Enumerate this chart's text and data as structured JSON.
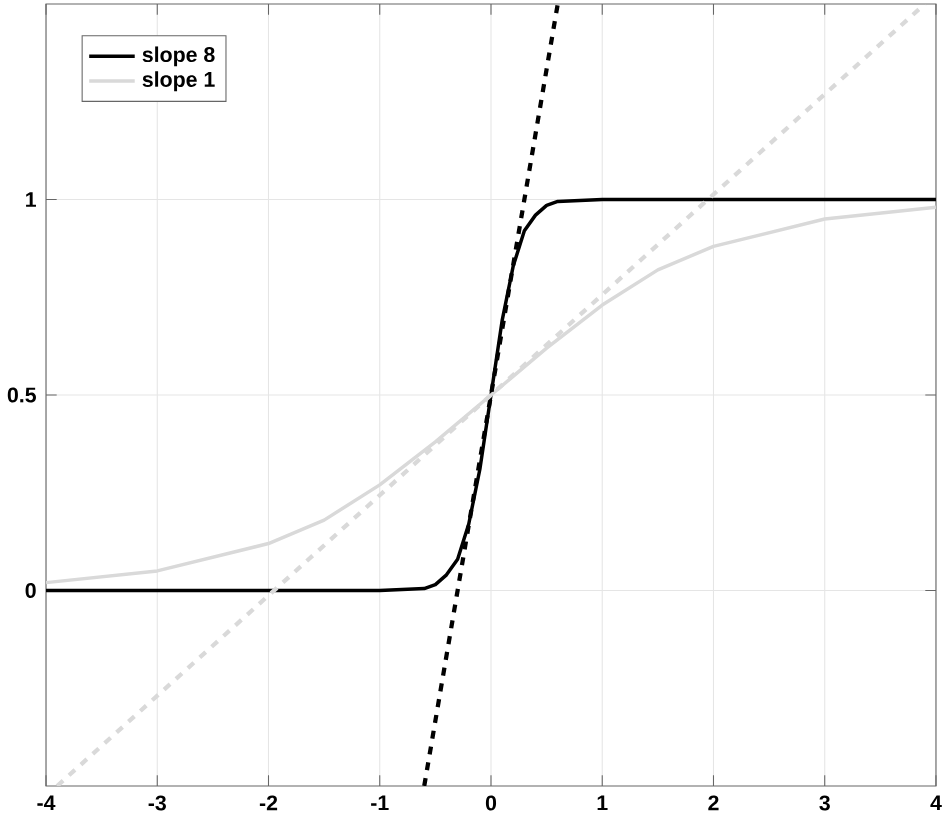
{
  "chart_data": {
    "type": "line",
    "xlim": [
      -4,
      4
    ],
    "ylim": [
      -0.5,
      1.5
    ],
    "xticks": [
      -4,
      -3,
      -2,
      -1,
      0,
      1,
      2,
      3,
      4
    ],
    "yticks": [
      0,
      0.5,
      1
    ],
    "grid": true,
    "legend": "top left",
    "marker": "none",
    "series": [
      {
        "name": "slope 8",
        "color": "#000000",
        "line_style": "solid",
        "x": [
          -4,
          -1,
          -0.6,
          -0.5,
          -0.4,
          -0.3,
          -0.2,
          -0.1,
          0,
          0.1,
          0.2,
          0.3,
          0.4,
          0.5,
          0.6,
          1,
          4
        ],
        "values": [
          0,
          0,
          0.005,
          0.015,
          0.04,
          0.08,
          0.17,
          0.31,
          0.5,
          0.69,
          0.83,
          0.92,
          0.96,
          0.985,
          0.995,
          1,
          1
        ]
      },
      {
        "name": "slope 1",
        "color": "#d9d9d9",
        "line_style": "solid",
        "x": [
          -4,
          -3,
          -2,
          -1.5,
          -1,
          -0.5,
          0,
          0.5,
          1,
          1.5,
          2,
          3,
          4
        ],
        "values": [
          0.02,
          0.05,
          0.12,
          0.18,
          0.27,
          0.38,
          0.5,
          0.62,
          0.73,
          0.82,
          0.88,
          0.95,
          0.98
        ]
      },
      {
        "color": "#000000",
        "line_style": "dashed",
        "x": [
          -0.6,
          0.6
        ],
        "values": [
          -0.5,
          1.5
        ]
      },
      {
        "color": "#d9d9d9",
        "line_style": "dashed",
        "x": [
          -3.9,
          3.9
        ],
        "values": [
          -0.5,
          1.5
        ]
      }
    ]
  }
}
